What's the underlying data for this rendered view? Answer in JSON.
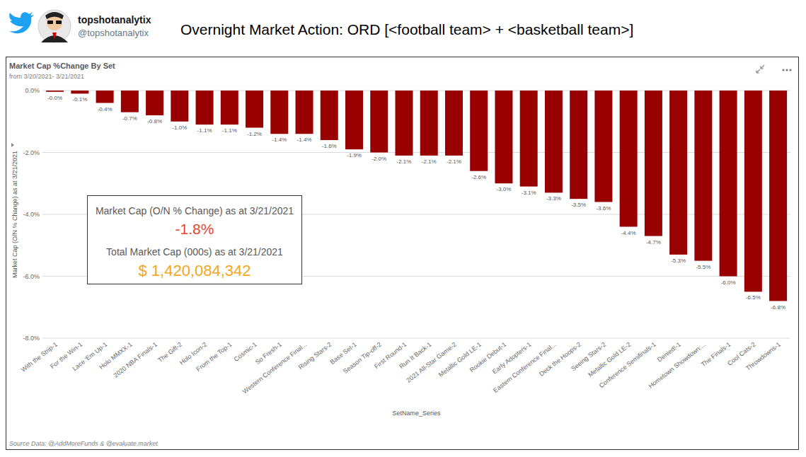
{
  "header": {
    "name": "topshotanalytix",
    "handle": "@topshotanalytix",
    "title": "Overnight Market Action: ORD [<football team> + <basketball team>]"
  },
  "chart_data": {
    "type": "bar",
    "title": "Market Cap %Change By Set",
    "subtitle": "from 3/20/2021- 3/21/2021",
    "y_label": "Market Cap (O/N % Change) as at 3/21/2021",
    "x_label": "SetName_Series",
    "categories": [
      "With the Strip-1",
      "For the Win-1",
      "Lace 'Em Up-1",
      "Holo MMXX-1",
      "2020 NBA Finals-1",
      "The Gift-2",
      "Holo Icon-2",
      "From the Top-1",
      "Cosmic-1",
      "So Fresh-1",
      "Western Conference Final...",
      "Rising Stars-2",
      "Base Set-1",
      "Season Tip-off-2",
      "First Round-1",
      "Run It Back-1",
      "2021 All-Star Game-2",
      "Metallic Gold LE-1",
      "Rookie Debut-1",
      "Early Adopters-1",
      "Eastern Conference Final...",
      "Deck the Hoops-2",
      "Seeing Stars-2",
      "Metallic Gold LE-2",
      "Conference Semifinals-1",
      "Denied!-1",
      "Hometown Showdown:...",
      "The Finals-1",
      "Cool Cats-2",
      "Throwdowns-1"
    ],
    "values": [
      -0.04,
      -0.1,
      -0.4,
      -0.7,
      -0.8,
      -1.0,
      -1.1,
      -1.1,
      -1.2,
      -1.4,
      -1.4,
      -1.6,
      -1.9,
      -2.0,
      -2.1,
      -2.1,
      -2.1,
      -2.6,
      -3.0,
      -3.1,
      -3.3,
      -3.5,
      -3.6,
      -4.4,
      -4.7,
      -5.3,
      -5.5,
      -6.0,
      -6.5,
      -6.8
    ],
    "value_labels": [
      "-0.0%",
      "-0.1%",
      "-0.4%",
      "-0.7%",
      "-0.8%",
      "-1.0%",
      "-1.1%",
      "-1.1%",
      "-1.2%",
      "-1.4%",
      "-1.4%",
      "-1.6%",
      "-1.9%",
      "-2.0%",
      "-2.1%",
      "-2.1%",
      "-2.1%",
      "-2.6%",
      "-3.0%",
      "-3.1%",
      "-3.3%",
      "-3.5%",
      "-3.6%",
      "-4.4%",
      "-4.7%",
      "-5.3%",
      "-5.5%",
      "-6.0%",
      "-6.5%",
      "-6.8%"
    ],
    "color": "#990000",
    "ylim": [
      -8,
      0
    ],
    "yticks": [
      {
        "value": 0,
        "label": "0.0%"
      },
      {
        "value": -2,
        "label": "-2.0%"
      },
      {
        "value": -4,
        "label": "-4.0%"
      },
      {
        "value": -6,
        "label": "-6.0%"
      },
      {
        "value": -8,
        "label": "-8.0%"
      }
    ],
    "grid": true,
    "data_labels": true,
    "kpi": {
      "change_label": "Market Cap (O/N % Change) as at 3/21/2021",
      "change_value": "-1.8%",
      "total_label": "Total Market Cap (000s) as at 3/21/2021",
      "total_value": "$ 1,420,084,342"
    },
    "source": "Source Data: @AddMoreFunds & @evaluate.market"
  }
}
